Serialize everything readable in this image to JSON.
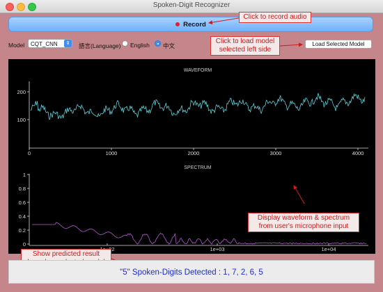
{
  "window": {
    "title": "Spoken-Digit Recognizer"
  },
  "toolbar": {
    "record_label": "Record",
    "model_label": "Model",
    "model_value": "CQT_CNN",
    "language_label": "語言(Language)",
    "lang_english": "English",
    "lang_chinese": "中文",
    "load_button_label": "Load Selected Model"
  },
  "waveform": {
    "title": "WAVEFORM",
    "y_ticks": [
      "200",
      "100"
    ],
    "x_ticks": [
      "0",
      "1000",
      "2000",
      "3000",
      "4000"
    ],
    "color": "#5fd0d8"
  },
  "spectrum": {
    "title": "SPECTRUM",
    "y_ticks": [
      "1",
      "0.8",
      "0.6",
      "0.4",
      "0.2",
      "0"
    ],
    "x_ticks": [
      "1e+02",
      "1e+03",
      "1e+04"
    ],
    "color": "#b35bd0"
  },
  "annotations": {
    "record": "Click to record audio",
    "load_model": "Click to load model selected left side",
    "display": "Display  waveform & spectrum from user's microphone input",
    "predicted": "Show predicted result based on  selected model"
  },
  "result": {
    "text": "\"5\" Spoken-Digits Detected : 1, 7, 2, 6, 5"
  }
}
